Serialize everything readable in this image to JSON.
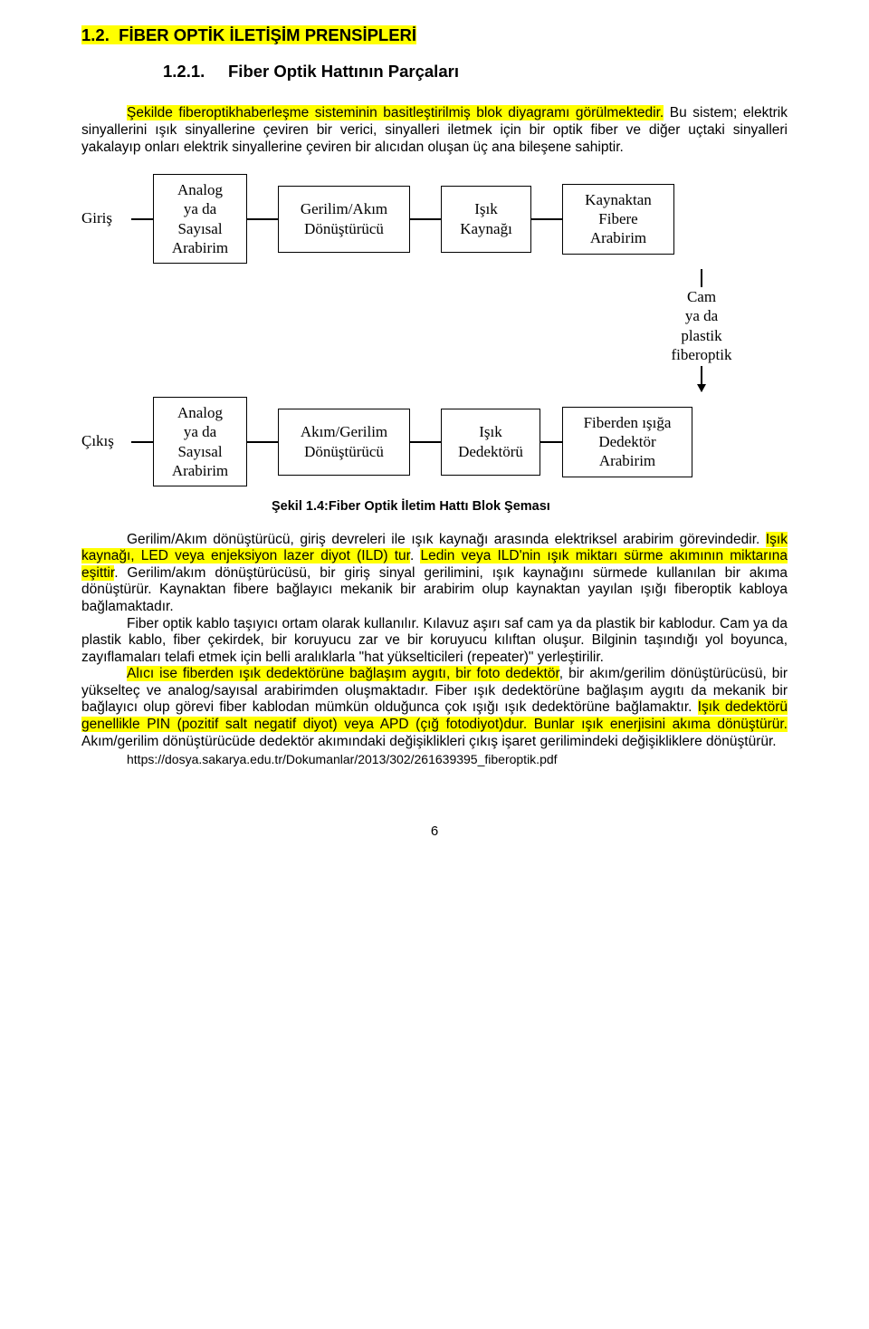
{
  "heading": {
    "section_number": "1.2.",
    "section_title": "FİBER OPTİK İLETİŞİM PRENSİPLERİ",
    "subsection_number": "1.2.1.",
    "subsection_title": "Fiber Optik Hattının Parçaları"
  },
  "intro": {
    "line1": "Şekilde fiberoptikhaberleşme sisteminin basitleştirilmiş blok diyagramı görülmektedir.",
    "line2": " Bu sistem; elektrik sinyallerini ışık sinyallerine çeviren bir verici, sinyalleri iletmek için bir optik fiber ve diğer uçtaki sinyalleri yakalayıp onları elektrik sinyallerine çeviren bir alıcıdan oluşan üç ana bileşene sahiptir."
  },
  "diagram": {
    "row1_label": "Giriş",
    "row1_boxes": [
      "Analog\nya da\nSayısal\nArabirim",
      "Gerilim/Akım\nDönüştürücü",
      "Işık\nKaynağı",
      "Kaynaktan\nFibere\nArabirim"
    ],
    "mid_label": "Cam\nya da\nplastik\nfiberoptik",
    "row2_label": "Çıkış",
    "row2_boxes": [
      "Analog\nya da\nSayısal\nArabirim",
      "Akım/Gerilim\nDönüştürücü",
      "Işık\nDedektörü",
      "Fiberden ışığa\nDedektör\nArabirim"
    ],
    "caption": "Şekil 1.4:Fiber Optik İletim Hattı Blok Şeması"
  },
  "body": {
    "p1_a": "Gerilim/Akım dönüştürücü, giriş devreleri ile ışık kaynağı arasında elektriksel arabirim görevindedir. ",
    "p1_hl1": "Işık kaynağı, LED veya enjeksiyon lazer diyot (ILD) tur",
    "p1_b": ". ",
    "p1_hl2": "Ledin veya ILD'nin ışık miktarı sürme akımının miktarına eşittir",
    "p1_c": ". Gerilim/akım dönüştürücüsü, bir giriş sinyal gerilimini, ışık kaynağını sürmede kullanılan bir akıma dönüştürür. Kaynaktan fibere bağlayıcı mekanik bir arabirim olup kaynaktan yayılan ışığı fiberoptik kabloya bağlamaktadır.",
    "p2": "Fiber optik kablo taşıyıcı ortam olarak kullanılır. Kılavuz aşırı saf cam ya da plastik bir kablodur. Cam ya da plastik kablo, fiber çekirdek, bir koruyucu zar ve bir koruyucu kılıftan oluşur. Bilginin taşındığı yol boyunca, zayıflamaları telafi etmek için belli aralıklarla \"hat yükselticileri (repeater)\" yerleştirilir.",
    "p3_hl1": "Alıcı ise fiberden ışık dedektörüne bağlaşım aygıtı, bir foto dedektör",
    "p3_a": ", bir akım/gerilim dönüştürücüsü, bir yükselteç ve analog/sayısal arabirimden oluşmaktadır. Fiber ışık dedektörüne bağlaşım aygıtı da mekanik bir bağlayıcı olup görevi fiber kablodan mümkün olduğunca çok ışığı ışık dedektörüne bağlamaktır. ",
    "p3_hl2": "Işık dedektörü genellikle PIN (pozitif salt negatif diyot) veya APD (çığ fotodiyot)dur. Bunlar ışık enerjisini akıma dönüştürür.",
    "p3_b": " Akım/gerilim dönüştürücüde dedektör akımındaki değişiklikleri çıkış işaret gerilimindeki değişikliklere dönüştürür.",
    "url": "https://dosya.sakarya.edu.tr/Dokumanlar/2013/302/261639395_fiberoptik.pdf"
  },
  "page_number": "6"
}
